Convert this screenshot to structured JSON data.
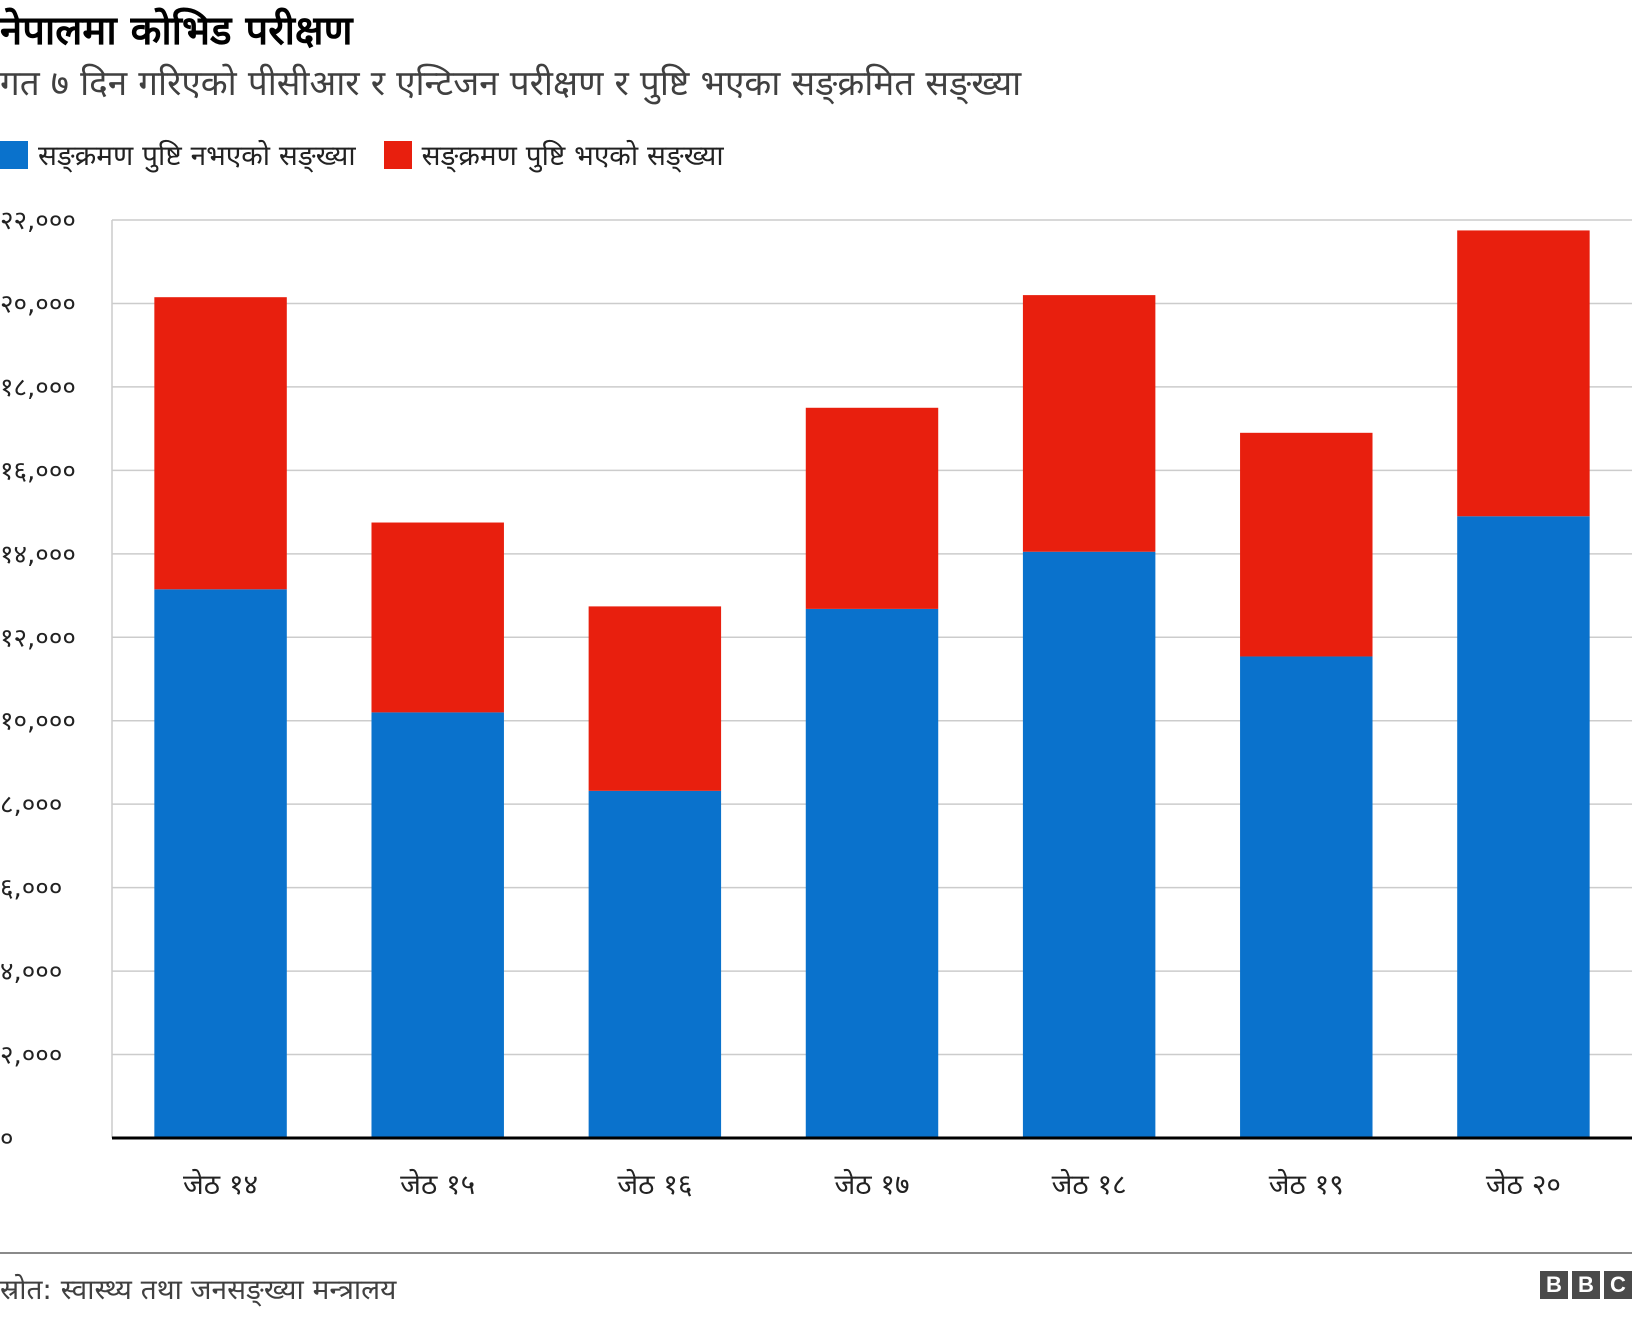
{
  "header": {
    "title": "नेपालमा कोभिड परीक्षण",
    "subtitle": "गत ७ दिन गरिएको पीसीआर र एन्टिजन परीक्षण र पुष्टि भएका सङ्क्रमित सङ्ख्या"
  },
  "legend": [
    {
      "label": "सङ्क्रमण पुष्टि नभएको सङ्ख्या",
      "color": "#0A72CC"
    },
    {
      "label": "सङ्क्रमण पुष्टि भएको सङ्ख्या",
      "color": "#E81F0E"
    }
  ],
  "chart_data": {
    "type": "bar",
    "stacked": true,
    "categories": [
      "जेठ १४",
      "जेठ १५",
      "जेठ १६",
      "जेठ १७",
      "जेठ १८",
      "जेठ १९",
      "जेठ २०"
    ],
    "series": [
      {
        "name": "सङ्क्रमण पुष्टि नभएको सङ्ख्या",
        "color": "#0A72CC",
        "values": [
          13150,
          10200,
          8320,
          12680,
          14050,
          11540,
          14900
        ]
      },
      {
        "name": "सङ्क्रमण पुष्टि भएको सङ्ख्या",
        "color": "#E81F0E",
        "values": [
          7000,
          4550,
          4420,
          4820,
          6150,
          5360,
          6850
        ]
      }
    ],
    "ylim": [
      0,
      22000
    ],
    "yticks": [
      0,
      2000,
      4000,
      6000,
      8000,
      10000,
      12000,
      14000,
      16000,
      18000,
      20000,
      22000
    ],
    "ytick_labels": [
      "०",
      "२,०००",
      "४,०००",
      "६,०००",
      "८,०००",
      "१०,०००",
      "१२,०००",
      "१४,०००",
      "१६,०००",
      "१८,०००",
      "२०,०००",
      "२२,०००"
    ],
    "grid": true,
    "legend_position": "top-left",
    "xlabel": "",
    "ylabel": ""
  },
  "footer": {
    "source": "स्रोत: स्वास्थ्य तथा जनसङ्ख्या मन्त्रालय",
    "logo_letters": [
      "B",
      "B",
      "C"
    ]
  }
}
